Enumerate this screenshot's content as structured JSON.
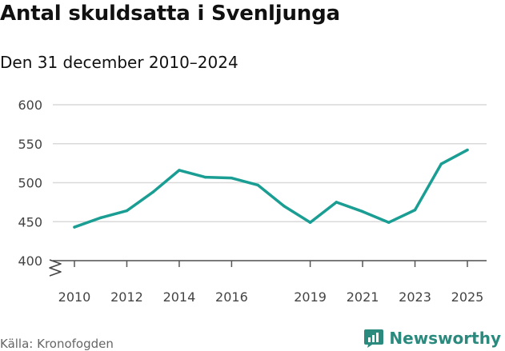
{
  "header": {
    "title": "Antal skuldsatta i Svenljunga",
    "subtitle": "Den 31 december 2010–2024"
  },
  "footer": {
    "source": "Källa: Kronofogden",
    "brand": "Newsworthy"
  },
  "colors": {
    "line": "#1a9e94",
    "grid": "#d9d9d9",
    "brand": "#2b8a7e"
  },
  "icons": {
    "brand": "newsworthy-logo-icon",
    "axis_break": "axis-break-icon"
  },
  "chart_data": {
    "type": "line",
    "title": "Antal skuldsatta i Svenljunga",
    "subtitle": "Den 31 december 2010–2024",
    "xlabel": "",
    "ylabel": "",
    "x": [
      2010,
      2011,
      2012,
      2013,
      2014,
      2015,
      2016,
      2017,
      2018,
      2019,
      2020,
      2021,
      2022,
      2023,
      2024,
      2025
    ],
    "series": [
      {
        "values": [
          443,
          455,
          464,
          488,
          516,
          507,
          506,
          497,
          470,
          449,
          475,
          463,
          449,
          465,
          524,
          542
        ]
      }
    ],
    "xticks": [
      "2010",
      "2012",
      "2014",
      "2016",
      "2019",
      "2021",
      "2023",
      "2025"
    ],
    "yticks": [
      "400",
      "450",
      "500",
      "550",
      "600"
    ],
    "xlim": [
      2010,
      2025
    ],
    "ylim": [
      400,
      600
    ],
    "grid": true,
    "axis_break": true
  }
}
